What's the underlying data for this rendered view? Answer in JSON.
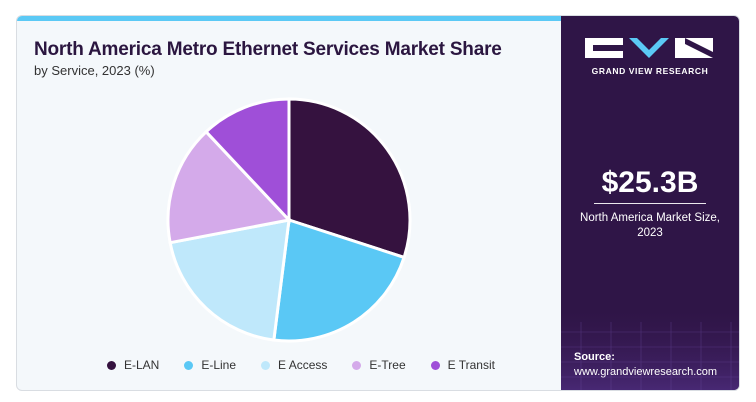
{
  "header": {
    "title": "North America Metro Ethernet Services Market Share",
    "subtitle": "by Service, 2023 (%)"
  },
  "sidebar": {
    "brand": "GRAND VIEW RESEARCH",
    "market_size": "$25.3B",
    "market_caption_line1": "North America Market Size,",
    "market_caption_line2": "2023",
    "source_label": "Source:",
    "source_url": "www.grandviewresearch.com"
  },
  "colors": {
    "accent_bar": "#5bc9f5",
    "sidebar_bg": "#2f1547",
    "title": "#2b1640"
  },
  "chart_data": {
    "type": "pie",
    "title": "North America Metro Ethernet Services Market Share",
    "subtitle": "by Service, 2023 (%)",
    "legend_position": "bottom",
    "categories": [
      "E-LAN",
      "E-Line",
      "E Access",
      "E-Tree",
      "E Transit"
    ],
    "values": [
      30,
      22,
      20,
      16,
      12
    ],
    "colors": [
      "#35123f",
      "#5ac8f5",
      "#bfe8fb",
      "#d4aaea",
      "#9f4fd8"
    ]
  }
}
